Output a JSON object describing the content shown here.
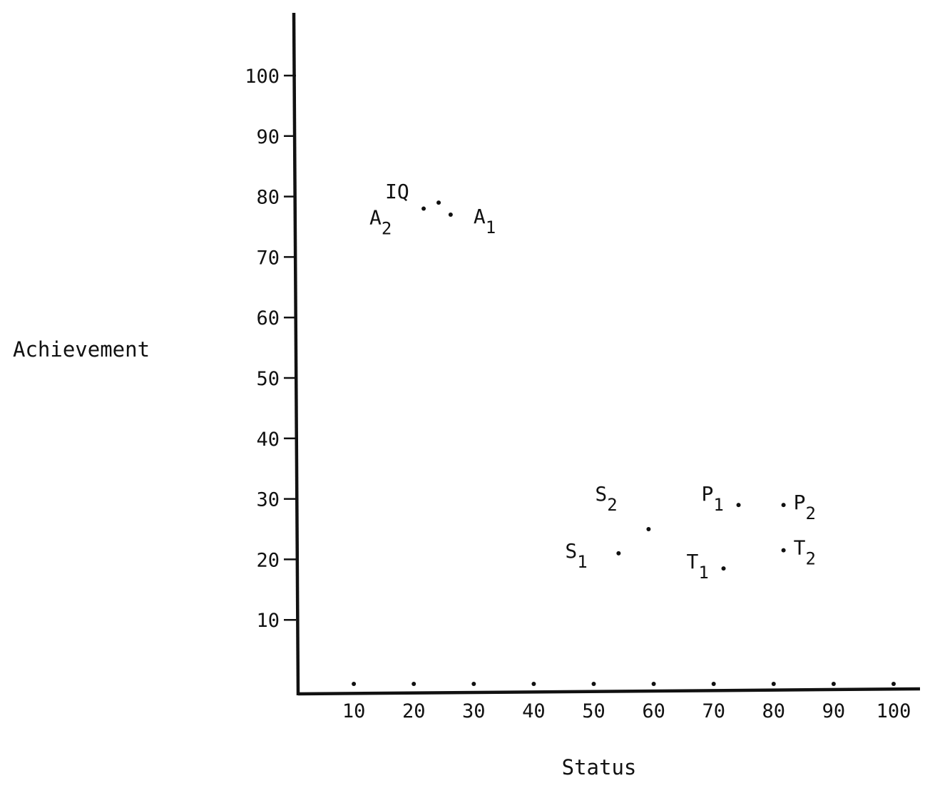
{
  "chart_data": {
    "type": "scatter",
    "title": "",
    "xlabel": "Status",
    "ylabel": "Achievement",
    "xlim": [
      0,
      100
    ],
    "ylim": [
      0,
      100
    ],
    "x_ticks": [
      10,
      20,
      30,
      40,
      50,
      60,
      70,
      80,
      90,
      100
    ],
    "y_ticks": [
      10,
      20,
      30,
      40,
      50,
      60,
      70,
      80,
      90,
      100
    ],
    "grid": false,
    "points": [
      {
        "label": "IQ",
        "label_sub": "",
        "x": 24.5,
        "y": 79
      },
      {
        "label": "A",
        "label_sub": "2",
        "x": 22,
        "y": 78
      },
      {
        "label": "A",
        "label_sub": "1",
        "x": 26.5,
        "y": 77
      },
      {
        "label": "S",
        "label_sub": "1",
        "x": 54.5,
        "y": 21
      },
      {
        "label": "S",
        "label_sub": "2",
        "x": 59.5,
        "y": 25
      },
      {
        "label": "P",
        "label_sub": "1",
        "x": 74.5,
        "y": 29
      },
      {
        "label": "P",
        "label_sub": "2",
        "x": 82,
        "y": 29
      },
      {
        "label": "T",
        "label_sub": "1",
        "x": 72,
        "y": 18.5
      },
      {
        "label": "T",
        "label_sub": "2",
        "x": 82,
        "y": 21.5
      }
    ]
  }
}
